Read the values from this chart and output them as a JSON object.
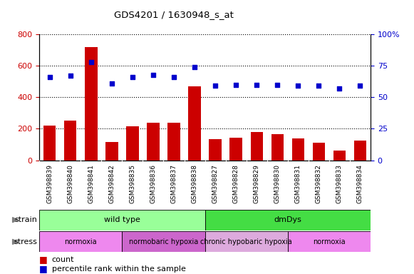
{
  "title": "GDS4201 / 1630948_s_at",
  "samples": [
    "GSM398839",
    "GSM398840",
    "GSM398841",
    "GSM398842",
    "GSM398835",
    "GSM398836",
    "GSM398837",
    "GSM398838",
    "GSM398827",
    "GSM398828",
    "GSM398829",
    "GSM398830",
    "GSM398831",
    "GSM398832",
    "GSM398833",
    "GSM398834"
  ],
  "counts": [
    220,
    250,
    720,
    115,
    215,
    240,
    240,
    470,
    135,
    145,
    180,
    165,
    140,
    110,
    60,
    125
  ],
  "percentiles": [
    66,
    67,
    78,
    61,
    66,
    68,
    66,
    74,
    59,
    60,
    60,
    60,
    59,
    59,
    57,
    59
  ],
  "ylim_left": [
    0,
    800
  ],
  "ylim_right": [
    0,
    100
  ],
  "yticks_left": [
    0,
    200,
    400,
    600,
    800
  ],
  "yticks_right": [
    0,
    25,
    50,
    75,
    100
  ],
  "ytick_right_labels": [
    "0",
    "25",
    "50",
    "75",
    "100%"
  ],
  "bar_color": "#CC0000",
  "dot_color": "#0000CC",
  "strain_groups": [
    {
      "label": "wild type",
      "start": 0,
      "end": 8,
      "color": "#99FF99"
    },
    {
      "label": "dmDys",
      "start": 8,
      "end": 16,
      "color": "#44DD44"
    }
  ],
  "stress_groups": [
    {
      "label": "normoxia",
      "start": 0,
      "end": 4,
      "color": "#EE88EE"
    },
    {
      "label": "normobaric hypoxia",
      "start": 4,
      "end": 8,
      "color": "#CC66CC"
    },
    {
      "label": "chronic hypobaric hypoxia",
      "start": 8,
      "end": 12,
      "color": "#DDAADD"
    },
    {
      "label": "normoxia",
      "start": 12,
      "end": 16,
      "color": "#EE88EE"
    }
  ],
  "tick_bg_color": "#CCCCCC",
  "legend_count_color": "#CC0000",
  "legend_dot_color": "#0000CC"
}
